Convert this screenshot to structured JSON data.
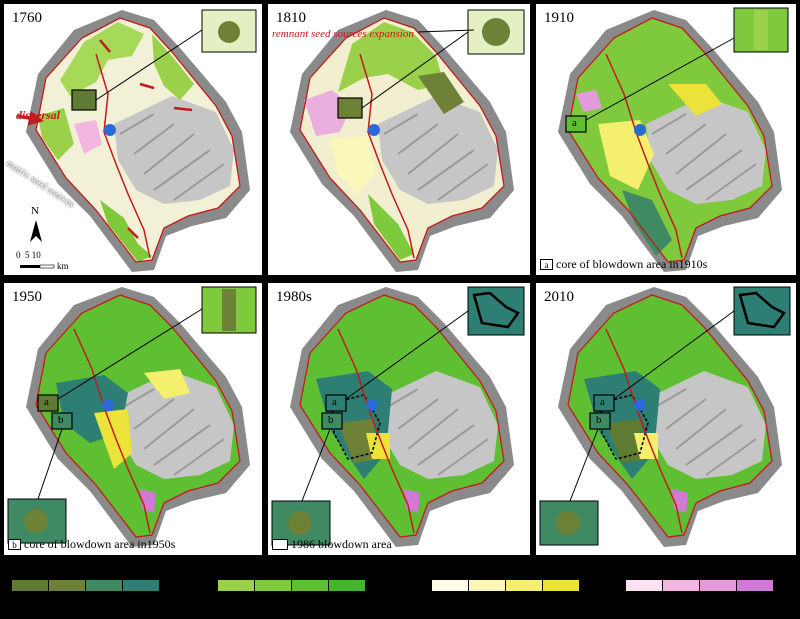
{
  "panels": [
    {
      "id": "1760",
      "year": "1760",
      "caption": "",
      "caption_key": ""
    },
    {
      "id": "1810",
      "year": "1810",
      "caption": "",
      "caption_key": ""
    },
    {
      "id": "1910",
      "year": "1910",
      "caption": "core of blowdown area in1910s",
      "caption_key": "a"
    },
    {
      "id": "1950",
      "year": "1950",
      "caption": "core of blowdown area in1950s",
      "caption_key": "b"
    },
    {
      "id": "1980s",
      "year": "1980s",
      "caption": "1986 blowdown area",
      "caption_key": ""
    },
    {
      "id": "2010",
      "year": "2010",
      "caption": "",
      "caption_key": ""
    }
  ],
  "annotations": {
    "dispersal": "dispersal",
    "matrix_seed_sources": "matrix seed sources",
    "remnant_seed_sources": "remnant seed sources expansion",
    "box_a": "a",
    "box_b": "b"
  },
  "scale_bar": {
    "north": "N",
    "ticks": "0  5 10",
    "unit": "km"
  },
  "legend_groups": [
    {
      "name": "",
      "colors": [
        "#5f7b33",
        "#6d8236",
        "#3f8a63",
        "#2d7f73"
      ]
    },
    {
      "name": "",
      "colors": [
        "#9bd04a",
        "#7fc93c",
        "#5fbf33",
        "#45b52c"
      ]
    },
    {
      "name": "",
      "colors": [
        "#fffce8",
        "#fbf7b8",
        "#f4ef6c",
        "#ece33a"
      ]
    },
    {
      "name": "",
      "colors": [
        "#fde3f1",
        "#f2b6e0",
        "#e49bdb",
        "#d07ad6"
      ]
    }
  ],
  "colors": {
    "boundary": "#c41a1a",
    "center_marker": "#2a6bd8",
    "relief": "#bdbdbd"
  }
}
